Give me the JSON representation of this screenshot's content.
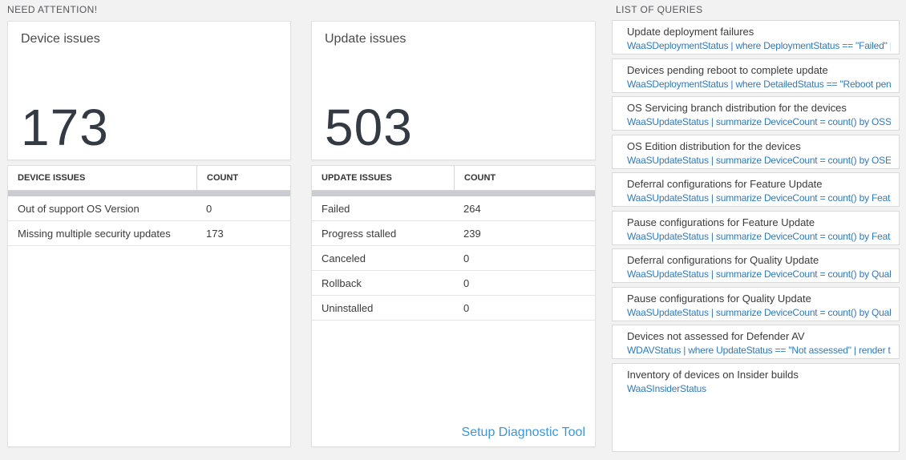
{
  "need_attention": {
    "header": "NEED ATTENTION!",
    "device_card": {
      "title": "Device issues",
      "count": "173"
    },
    "device_table": {
      "columns": [
        "DEVICE ISSUES",
        "COUNT"
      ],
      "rows": [
        {
          "label": "Out of support OS Version",
          "count": "0"
        },
        {
          "label": "Missing multiple security updates",
          "count": "173"
        }
      ]
    },
    "update_card": {
      "title": "Update issues",
      "count": "503"
    },
    "update_table": {
      "columns": [
        "UPDATE ISSUES",
        "COUNT"
      ],
      "rows": [
        {
          "label": "Failed",
          "count": "264"
        },
        {
          "label": "Progress stalled",
          "count": "239"
        },
        {
          "label": "Canceled",
          "count": "0"
        },
        {
          "label": "Rollback",
          "count": "0"
        },
        {
          "label": "Uninstalled",
          "count": "0"
        }
      ],
      "footer_link": "Setup Diagnostic Tool"
    }
  },
  "queries": {
    "header": "LIST OF QUERIES",
    "items": [
      {
        "title": "Update deployment failures",
        "query": "WaaSDeploymentStatus | where DeploymentStatus == \"Failed\" |..."
      },
      {
        "title": "Devices pending reboot to complete update",
        "query": "WaaSDeploymentStatus | where DetailedStatus == \"Reboot pend..."
      },
      {
        "title": "OS Servicing branch distribution for the devices",
        "query": "WaaSUpdateStatus | summarize DeviceCount = count() by OSSer..."
      },
      {
        "title": "OS Edition distribution for the devices",
        "query": "WaaSUpdateStatus | summarize DeviceCount = count() by OSEdit..."
      },
      {
        "title": "Deferral configurations for Feature Update",
        "query": "WaaSUpdateStatus | summarize DeviceCount = count() by Featur..."
      },
      {
        "title": "Pause configurations for Feature Update",
        "query": "WaaSUpdateStatus | summarize DeviceCount = count() by Featur..."
      },
      {
        "title": "Deferral configurations for Quality Update",
        "query": "WaaSUpdateStatus | summarize DeviceCount = count() by Qualit..."
      },
      {
        "title": "Pause configurations for Quality Update",
        "query": "WaaSUpdateStatus | summarize DeviceCount = count() by Qualit..."
      },
      {
        "title": "Devices not assessed for Defender AV",
        "query": "WDAVStatus | where UpdateStatus == \"Not assessed\" | render ta..."
      },
      {
        "title": "Inventory of devices on Insider builds",
        "query": "WaaSInsiderStatus"
      }
    ]
  },
  "colors": {
    "page_background": "#f2f2f2",
    "big_number": "#333a44",
    "query_link_blue": "#2e79bd",
    "diagnostic_link_blue": "#3a96dd",
    "scrollbar_gray": "#c9cdd1"
  }
}
